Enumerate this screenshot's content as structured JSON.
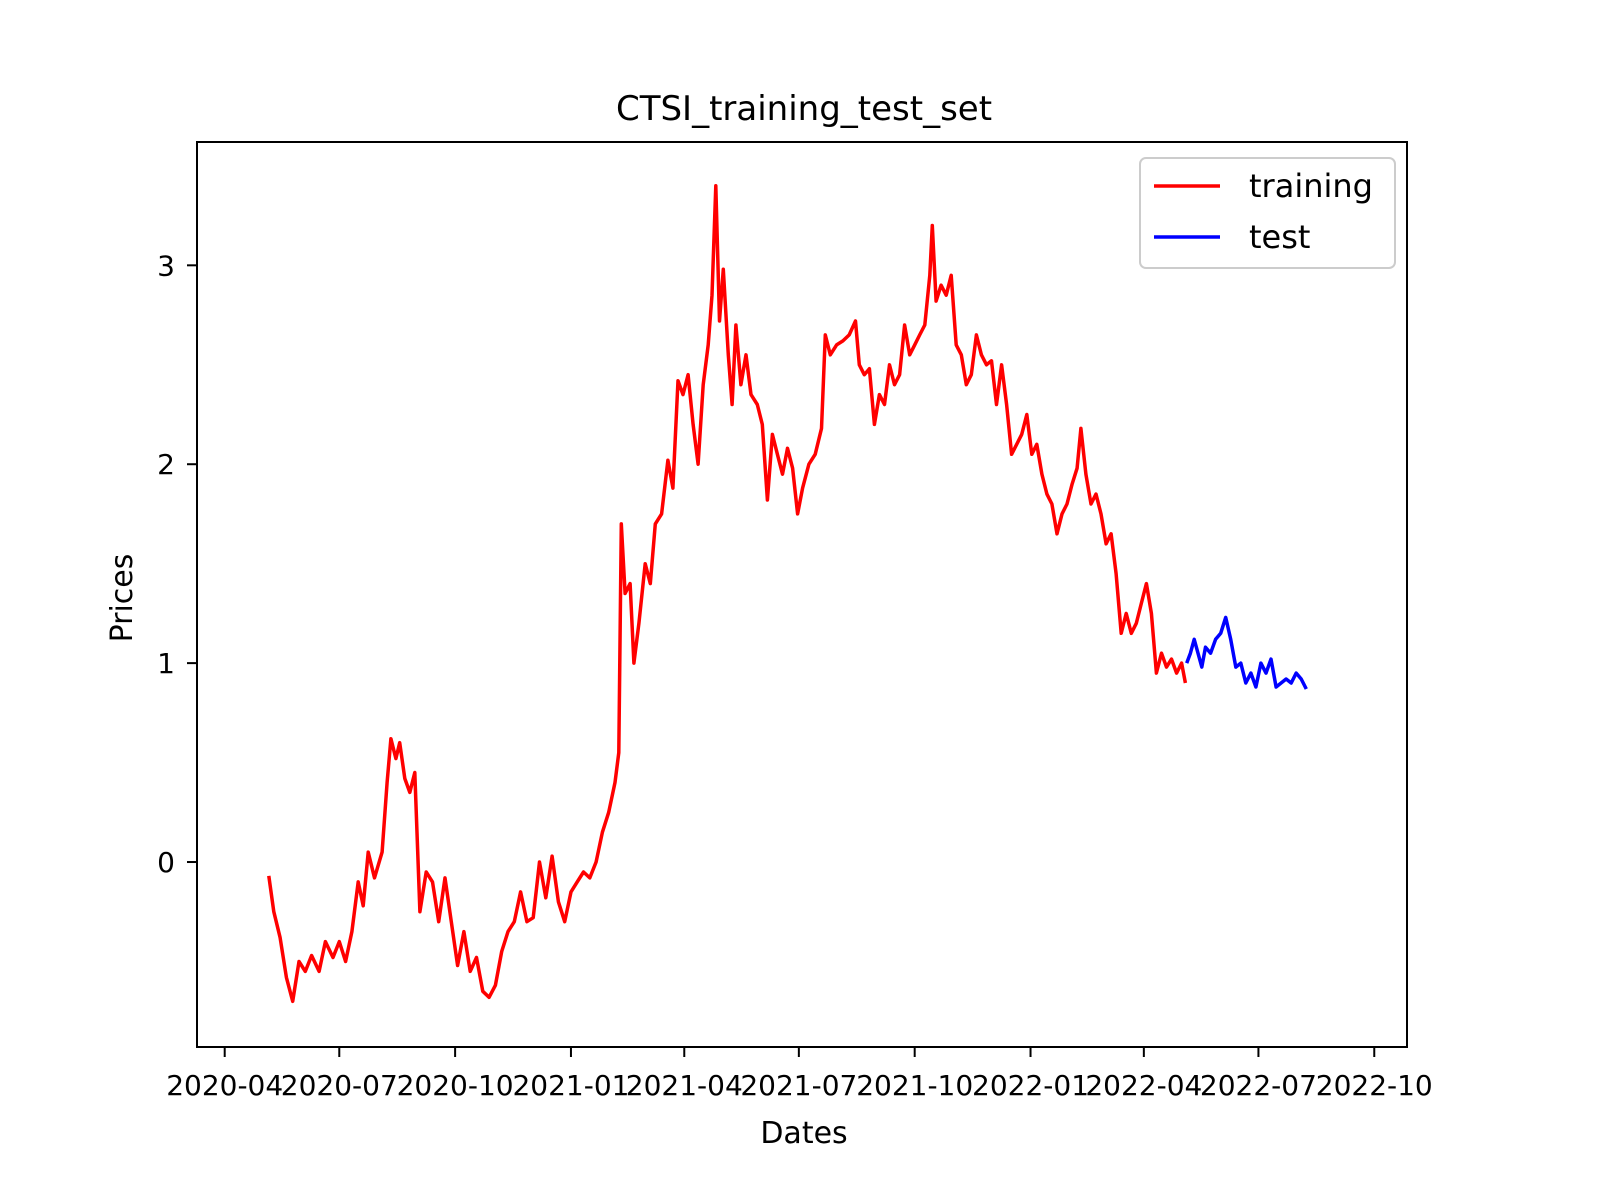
{
  "chart_data": {
    "type": "line",
    "title": "CTSI_training_test_set",
    "xlabel": "Dates",
    "ylabel": "Prices",
    "x_ticks": [
      "2020-04",
      "2020-07",
      "2020-10",
      "2021-01",
      "2021-04",
      "2021-07",
      "2021-10",
      "2022-01",
      "2022-04",
      "2022-07",
      "2022-10"
    ],
    "y_ticks": [
      "0",
      "1",
      "2",
      "3"
    ],
    "ylim": [
      -0.93,
      3.62
    ],
    "xlim": [
      "2020-03-10",
      "2022-10-27"
    ],
    "legend_position": "top-right",
    "grid": false,
    "series": [
      {
        "name": "training",
        "color": "#ff0000",
        "points": [
          [
            "2020-05-06",
            -0.07
          ],
          [
            "2020-05-10",
            -0.25
          ],
          [
            "2020-05-15",
            -0.38
          ],
          [
            "2020-05-20",
            -0.58
          ],
          [
            "2020-05-25",
            -0.7
          ],
          [
            "2020-05-30",
            -0.5
          ],
          [
            "2020-06-04",
            -0.55
          ],
          [
            "2020-06-09",
            -0.47
          ],
          [
            "2020-06-15",
            -0.55
          ],
          [
            "2020-06-20",
            -0.4
          ],
          [
            "2020-06-26",
            -0.48
          ],
          [
            "2020-07-01",
            -0.4
          ],
          [
            "2020-07-06",
            -0.5
          ],
          [
            "2020-07-11",
            -0.35
          ],
          [
            "2020-07-16",
            -0.1
          ],
          [
            "2020-07-20",
            -0.22
          ],
          [
            "2020-07-24",
            0.05
          ],
          [
            "2020-07-29",
            -0.08
          ],
          [
            "2020-08-04",
            0.05
          ],
          [
            "2020-08-08",
            0.4
          ],
          [
            "2020-08-11",
            0.62
          ],
          [
            "2020-08-15",
            0.52
          ],
          [
            "2020-08-18",
            0.6
          ],
          [
            "2020-08-22",
            0.42
          ],
          [
            "2020-08-26",
            0.35
          ],
          [
            "2020-08-30",
            0.45
          ],
          [
            "2020-09-03",
            -0.25
          ],
          [
            "2020-09-08",
            -0.05
          ],
          [
            "2020-09-13",
            -0.1
          ],
          [
            "2020-09-18",
            -0.3
          ],
          [
            "2020-09-23",
            -0.08
          ],
          [
            "2020-09-28",
            -0.3
          ],
          [
            "2020-10-03",
            -0.52
          ],
          [
            "2020-10-08",
            -0.35
          ],
          [
            "2020-10-13",
            -0.55
          ],
          [
            "2020-10-18",
            -0.48
          ],
          [
            "2020-10-23",
            -0.65
          ],
          [
            "2020-10-28",
            -0.68
          ],
          [
            "2020-11-02",
            -0.62
          ],
          [
            "2020-11-07",
            -0.45
          ],
          [
            "2020-11-12",
            -0.35
          ],
          [
            "2020-11-17",
            -0.3
          ],
          [
            "2020-11-22",
            -0.15
          ],
          [
            "2020-11-27",
            -0.3
          ],
          [
            "2020-12-02",
            -0.28
          ],
          [
            "2020-12-07",
            0.0
          ],
          [
            "2020-12-12",
            -0.18
          ],
          [
            "2020-12-17",
            0.03
          ],
          [
            "2020-12-22",
            -0.2
          ],
          [
            "2020-12-27",
            -0.3
          ],
          [
            "2021-01-01",
            -0.15
          ],
          [
            "2021-01-06",
            -0.1
          ],
          [
            "2021-01-11",
            -0.05
          ],
          [
            "2021-01-16",
            -0.08
          ],
          [
            "2021-01-21",
            0.0
          ],
          [
            "2021-01-26",
            0.15
          ],
          [
            "2021-01-31",
            0.25
          ],
          [
            "2021-02-05",
            0.4
          ],
          [
            "2021-02-08",
            0.55
          ],
          [
            "2021-02-10",
            1.7
          ],
          [
            "2021-02-13",
            1.35
          ],
          [
            "2021-02-17",
            1.4
          ],
          [
            "2021-02-20",
            1.0
          ],
          [
            "2021-02-24",
            1.2
          ],
          [
            "2021-03-01",
            1.5
          ],
          [
            "2021-03-05",
            1.4
          ],
          [
            "2021-03-09",
            1.7
          ],
          [
            "2021-03-14",
            1.75
          ],
          [
            "2021-03-19",
            2.02
          ],
          [
            "2021-03-23",
            1.88
          ],
          [
            "2021-03-27",
            2.42
          ],
          [
            "2021-03-31",
            2.35
          ],
          [
            "2021-04-04",
            2.45
          ],
          [
            "2021-04-08",
            2.2
          ],
          [
            "2021-04-12",
            2.0
          ],
          [
            "2021-04-16",
            2.4
          ],
          [
            "2021-04-20",
            2.6
          ],
          [
            "2021-04-23",
            2.85
          ],
          [
            "2021-04-26",
            3.4
          ],
          [
            "2021-04-29",
            2.72
          ],
          [
            "2021-05-02",
            2.98
          ],
          [
            "2021-05-06",
            2.55
          ],
          [
            "2021-05-09",
            2.3
          ],
          [
            "2021-05-12",
            2.7
          ],
          [
            "2021-05-16",
            2.4
          ],
          [
            "2021-05-20",
            2.55
          ],
          [
            "2021-05-24",
            2.35
          ],
          [
            "2021-05-29",
            2.3
          ],
          [
            "2021-06-02",
            2.2
          ],
          [
            "2021-06-06",
            1.82
          ],
          [
            "2021-06-10",
            2.15
          ],
          [
            "2021-06-14",
            2.05
          ],
          [
            "2021-06-18",
            1.95
          ],
          [
            "2021-06-22",
            2.08
          ],
          [
            "2021-06-26",
            1.98
          ],
          [
            "2021-06-30",
            1.75
          ],
          [
            "2021-07-04",
            1.88
          ],
          [
            "2021-07-09",
            2.0
          ],
          [
            "2021-07-14",
            2.05
          ],
          [
            "2021-07-19",
            2.18
          ],
          [
            "2021-07-22",
            2.65
          ],
          [
            "2021-07-26",
            2.55
          ],
          [
            "2021-07-31",
            2.6
          ],
          [
            "2021-08-05",
            2.62
          ],
          [
            "2021-08-10",
            2.65
          ],
          [
            "2021-08-15",
            2.72
          ],
          [
            "2021-08-18",
            2.5
          ],
          [
            "2021-08-22",
            2.45
          ],
          [
            "2021-08-26",
            2.48
          ],
          [
            "2021-08-30",
            2.2
          ],
          [
            "2021-09-03",
            2.35
          ],
          [
            "2021-09-07",
            2.3
          ],
          [
            "2021-09-11",
            2.5
          ],
          [
            "2021-09-15",
            2.4
          ],
          [
            "2021-09-19",
            2.45
          ],
          [
            "2021-09-23",
            2.7
          ],
          [
            "2021-09-27",
            2.55
          ],
          [
            "2021-10-01",
            2.6
          ],
          [
            "2021-10-05",
            2.65
          ],
          [
            "2021-10-09",
            2.7
          ],
          [
            "2021-10-13",
            2.95
          ],
          [
            "2021-10-15",
            3.2
          ],
          [
            "2021-10-18",
            2.82
          ],
          [
            "2021-10-22",
            2.9
          ],
          [
            "2021-10-26",
            2.85
          ],
          [
            "2021-10-30",
            2.95
          ],
          [
            "2021-11-03",
            2.6
          ],
          [
            "2021-11-07",
            2.55
          ],
          [
            "2021-11-11",
            2.4
          ],
          [
            "2021-11-15",
            2.45
          ],
          [
            "2021-11-19",
            2.65
          ],
          [
            "2021-11-23",
            2.55
          ],
          [
            "2021-11-27",
            2.5
          ],
          [
            "2021-12-01",
            2.52
          ],
          [
            "2021-12-05",
            2.3
          ],
          [
            "2021-12-09",
            2.5
          ],
          [
            "2021-12-13",
            2.3
          ],
          [
            "2021-12-17",
            2.05
          ],
          [
            "2021-12-21",
            2.1
          ],
          [
            "2021-12-25",
            2.15
          ],
          [
            "2021-12-29",
            2.25
          ],
          [
            "2022-01-02",
            2.05
          ],
          [
            "2022-01-06",
            2.1
          ],
          [
            "2022-01-10",
            1.95
          ],
          [
            "2022-01-14",
            1.85
          ],
          [
            "2022-01-18",
            1.8
          ],
          [
            "2022-01-22",
            1.65
          ],
          [
            "2022-01-26",
            1.75
          ],
          [
            "2022-01-30",
            1.8
          ],
          [
            "2022-02-03",
            1.9
          ],
          [
            "2022-02-07",
            1.98
          ],
          [
            "2022-02-10",
            2.18
          ],
          [
            "2022-02-14",
            1.95
          ],
          [
            "2022-02-18",
            1.8
          ],
          [
            "2022-02-22",
            1.85
          ],
          [
            "2022-02-26",
            1.75
          ],
          [
            "2022-03-02",
            1.6
          ],
          [
            "2022-03-06",
            1.65
          ],
          [
            "2022-03-10",
            1.45
          ],
          [
            "2022-03-14",
            1.15
          ],
          [
            "2022-03-18",
            1.25
          ],
          [
            "2022-03-22",
            1.15
          ],
          [
            "2022-03-26",
            1.2
          ],
          [
            "2022-03-30",
            1.3
          ],
          [
            "2022-04-03",
            1.4
          ],
          [
            "2022-04-07",
            1.25
          ],
          [
            "2022-04-11",
            0.95
          ],
          [
            "2022-04-15",
            1.05
          ],
          [
            "2022-04-19",
            0.98
          ],
          [
            "2022-04-23",
            1.02
          ],
          [
            "2022-04-27",
            0.95
          ],
          [
            "2022-05-01",
            1.0
          ],
          [
            "2022-05-04",
            0.9
          ]
        ]
      },
      {
        "name": "test",
        "color": "#0000ff",
        "points": [
          [
            "2022-05-05",
            1.0
          ],
          [
            "2022-05-08",
            1.05
          ],
          [
            "2022-05-11",
            1.12
          ],
          [
            "2022-05-14",
            1.05
          ],
          [
            "2022-05-17",
            0.98
          ],
          [
            "2022-05-20",
            1.08
          ],
          [
            "2022-05-24",
            1.05
          ],
          [
            "2022-05-28",
            1.12
          ],
          [
            "2022-06-01",
            1.15
          ],
          [
            "2022-06-05",
            1.23
          ],
          [
            "2022-06-09",
            1.12
          ],
          [
            "2022-06-13",
            0.98
          ],
          [
            "2022-06-17",
            1.0
          ],
          [
            "2022-06-21",
            0.9
          ],
          [
            "2022-06-25",
            0.95
          ],
          [
            "2022-06-29",
            0.88
          ],
          [
            "2022-07-03",
            1.0
          ],
          [
            "2022-07-07",
            0.95
          ],
          [
            "2022-07-11",
            1.02
          ],
          [
            "2022-07-15",
            0.88
          ],
          [
            "2022-07-19",
            0.9
          ],
          [
            "2022-07-23",
            0.92
          ],
          [
            "2022-07-27",
            0.9
          ],
          [
            "2022-07-31",
            0.95
          ],
          [
            "2022-08-04",
            0.92
          ],
          [
            "2022-08-08",
            0.87
          ]
        ]
      }
    ]
  }
}
